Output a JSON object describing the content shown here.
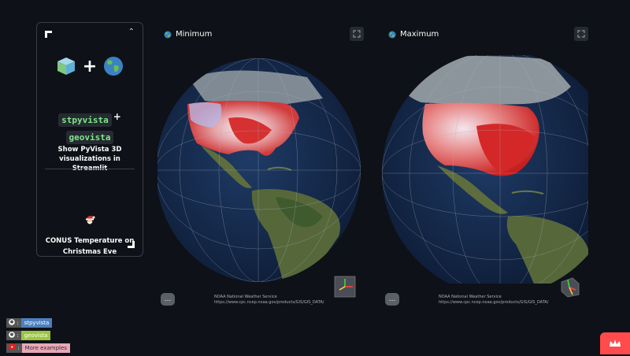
{
  "sidebar": {
    "packages": [
      "stpyvista",
      "geovista"
    ],
    "plus": "+",
    "description": "Show PyVista 3D visualizations in Streamlit",
    "subtitle": "CONUS Temperature on Christmas Eve"
  },
  "panels": [
    {
      "title": "Minimum",
      "menu": "...",
      "credit_1": "NOAA National Weather Service",
      "credit_2": "https://www.cpc.ncep.noaa.gov/products/GIS/GIS_DATA/"
    },
    {
      "title": "Maximum",
      "menu": "...",
      "credit_1": "NOAA National Weather Service",
      "credit_2": "https://www.cpc.ncep.noaa.gov/products/GIS/GIS_DATA/"
    }
  ],
  "badges": [
    {
      "left": ":",
      "right": "stpyvista",
      "color": "#4c7fbf"
    },
    {
      "left": ":",
      "right": "geovista",
      "color": "#9bc53d"
    },
    {
      "left": ":",
      "right": "More examples",
      "color": "#e8a8b8"
    }
  ],
  "colors": {
    "background": "#0e1117",
    "accent": "#ff4b4b",
    "package_text": "#7ee787"
  },
  "icons": [
    "pyvista-cube-icon",
    "globe-icon",
    "santa-emoji-icon",
    "github-icon",
    "youtube-icon",
    "fullscreen-icon",
    "streamlit-crown-icon"
  ]
}
